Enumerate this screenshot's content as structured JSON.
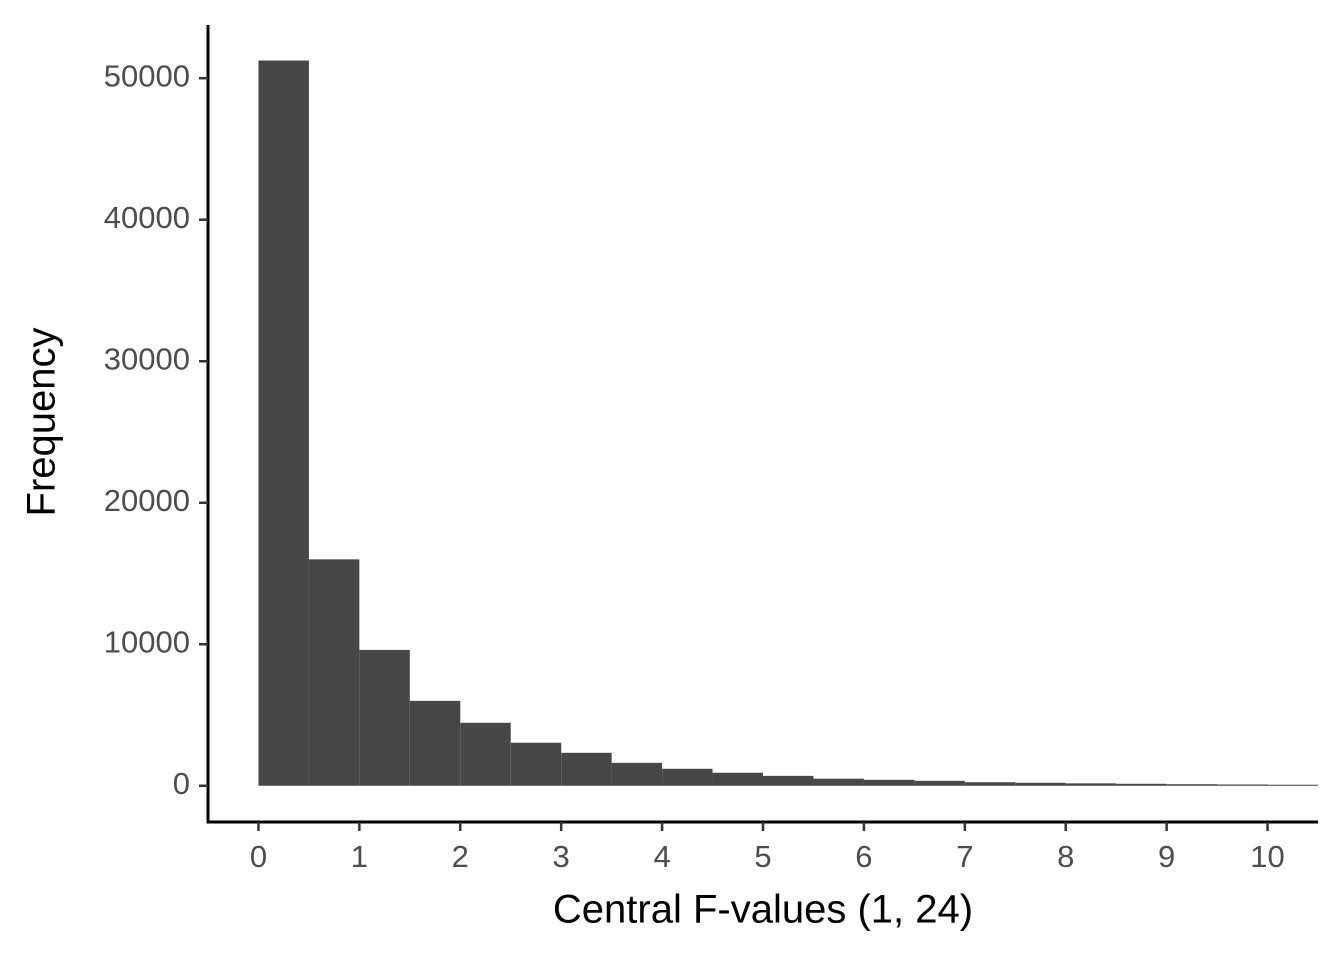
{
  "chart_data": {
    "type": "histogram",
    "x_label": "Central F-values (1, 24)",
    "y_label": "Frequency",
    "bins": [
      0,
      0.5,
      1,
      1.5,
      2,
      2.5,
      3,
      3.5,
      4,
      4.5,
      5,
      5.5,
      6,
      6.5,
      7,
      7.5,
      8,
      8.5,
      9,
      9.5,
      10,
      10.5
    ],
    "values": [
      51250,
      16000,
      9600,
      6000,
      4450,
      3040,
      2330,
      1620,
      1200,
      920,
      700,
      500,
      420,
      350,
      250,
      210,
      170,
      140,
      110,
      90,
      75
    ],
    "color": "#474747",
    "xlim": [
      -0.5,
      10.5
    ],
    "ylim": [
      -2560,
      53760
    ],
    "xticks": [
      0,
      1,
      2,
      3,
      4,
      5,
      6,
      7,
      8,
      9,
      10
    ],
    "yticks": [
      0,
      10000,
      20000,
      30000,
      40000,
      50000
    ],
    "grid": false
  }
}
